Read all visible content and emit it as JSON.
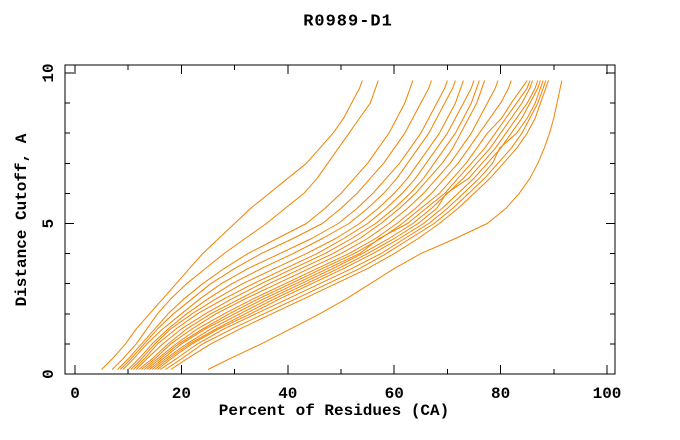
{
  "page": {
    "background": "#ffffff"
  },
  "chart_data": {
    "type": "line",
    "title": "R0989-D1",
    "xlabel": "Percent of Residues (CA)",
    "ylabel": "Distance Cutoff, A",
    "xlim": [
      0,
      100
    ],
    "ylim": [
      0,
      10
    ],
    "x_major_ticks": [
      0,
      20,
      40,
      60,
      80,
      100
    ],
    "x_minor_step": 10,
    "y_major_ticks": [
      0,
      5,
      10
    ],
    "y_minor_step": 1,
    "grid": false,
    "legend": "none",
    "frame": "box-with-inward-ticks",
    "line_color": "#f28200",
    "frame_color": "#000000",
    "cutoffs": [
      0.15,
      0.5,
      1,
      1.5,
      2,
      2.5,
      3,
      3.5,
      4,
      4.5,
      5,
      5.5,
      6,
      6.5,
      7,
      7.5,
      8,
      8.5,
      9,
      9.5,
      9.75
    ],
    "series": [
      {
        "x": [
          5,
          7,
          9.5,
          11.5,
          14,
          16.5,
          19,
          21.5,
          24,
          27,
          30,
          33,
          36.5,
          40,
          43.5,
          46,
          48.5,
          50.5,
          52,
          53.5,
          54
        ]
      },
      {
        "x": [
          7,
          9,
          11.5,
          13.5,
          15.5,
          18,
          21,
          24.5,
          28,
          32,
          36,
          39.5,
          43,
          45.5,
          47.5,
          49.5,
          51.5,
          53.5,
          55.5,
          56.5,
          57
        ]
      },
      {
        "x": [
          8,
          10,
          12.5,
          15,
          17.5,
          20.5,
          24,
          28,
          32.5,
          38,
          43.5,
          47,
          50,
          52.5,
          55,
          57,
          59,
          60.5,
          62,
          63,
          63.5
        ]
      },
      {
        "x": [
          8.5,
          10.5,
          13,
          15.5,
          18.5,
          22,
          25.5,
          30,
          35,
          41,
          46.5,
          50,
          53,
          55.5,
          58,
          60,
          62,
          63.5,
          65,
          66.5,
          67
        ]
      },
      {
        "x": [
          9,
          11,
          13.5,
          16.5,
          20,
          23.5,
          27.5,
          32.5,
          38.5,
          44.5,
          49.5,
          53,
          56,
          58.5,
          61,
          63,
          65,
          66.5,
          68,
          69.5,
          70
        ]
      },
      {
        "x": [
          10,
          12,
          14.5,
          17.5,
          21,
          25,
          29.5,
          35,
          41,
          46.5,
          51.5,
          55,
          58,
          60.5,
          62.5,
          64.5,
          66.5,
          68,
          69.5,
          71,
          71.5
        ]
      },
      {
        "x": [
          10.5,
          12.5,
          15,
          18,
          22,
          26.5,
          31.5,
          37.5,
          43.5,
          49,
          53.5,
          57,
          60,
          62.5,
          64.5,
          66.5,
          68.5,
          70,
          71.5,
          72.5,
          73
        ]
      },
      {
        "x": [
          11,
          13,
          15.5,
          19,
          23,
          28,
          33.5,
          39.5,
          45.5,
          50.5,
          55,
          58.5,
          61.5,
          64,
          66,
          68,
          70,
          71.5,
          73,
          74.5,
          75
        ]
      },
      {
        "x": [
          11.5,
          13.5,
          16.5,
          20,
          24.5,
          29.5,
          35,
          41,
          47,
          52,
          56.5,
          60,
          63,
          65.5,
          67.5,
          69.5,
          71.5,
          73,
          74.5,
          75.5,
          76
        ]
      },
      {
        "x": [
          12,
          14.5,
          17.5,
          21,
          25.5,
          31,
          36.5,
          42.5,
          48.5,
          53.5,
          57.5,
          61,
          64,
          66.5,
          69,
          71,
          72.5,
          74,
          75.5,
          76.5,
          77
        ]
      },
      {
        "x": [
          12.5,
          15,
          18,
          22,
          26.5,
          32,
          38,
          44,
          50,
          55,
          59,
          62.5,
          65.5,
          68,
          70.5,
          72.5,
          74.5,
          76,
          77.5,
          79,
          79.5
        ]
      },
      {
        "x": [
          13,
          15.5,
          19,
          23,
          28,
          33.5,
          39.5,
          45.5,
          51.5,
          56.5,
          60.5,
          64,
          67,
          69.5,
          72,
          74,
          76,
          78,
          80,
          81.5,
          82
        ]
      },
      {
        "x": [
          13.5,
          16,
          19.5,
          24,
          29,
          34.5,
          40.5,
          46.5,
          52.5,
          57.5,
          61.5,
          65,
          68.5,
          71,
          73.5,
          75.5,
          77.5,
          80.2,
          82,
          84,
          85
        ]
      },
      {
        "x": [
          14,
          16.5,
          20,
          24.5,
          30,
          35.5,
          41.5,
          47.5,
          53.5,
          57.2,
          62.5,
          66,
          69.5,
          72,
          74.5,
          77,
          79,
          81,
          83,
          85,
          85.5
        ]
      },
      {
        "x": [
          14.5,
          17,
          21,
          25.5,
          31,
          36.5,
          42.5,
          48.5,
          54,
          59,
          63.5,
          67,
          70,
          73,
          75.5,
          78,
          80,
          82,
          84,
          85.5,
          86
        ]
      },
      {
        "x": [
          15,
          17.5,
          21.5,
          26.5,
          32,
          37.5,
          43.5,
          49.5,
          55,
          60,
          64.5,
          68,
          69.8,
          74,
          76.5,
          79,
          81,
          83,
          85,
          86.5,
          87
        ]
      },
      {
        "x": [
          15.5,
          18,
          22,
          27,
          33,
          38.5,
          44.5,
          50.5,
          56,
          61,
          65.5,
          69,
          72,
          75,
          77.5,
          80,
          82,
          84,
          85.5,
          87,
          87.5
        ]
      },
      {
        "x": [
          16,
          19,
          23,
          28,
          34,
          40,
          46,
          52,
          57.5,
          62,
          66.5,
          70,
          73,
          76,
          78.5,
          79.8,
          83,
          85,
          86.5,
          87.5,
          88
        ]
      },
      {
        "x": [
          17,
          20,
          24,
          29.5,
          35.5,
          41.5,
          47.5,
          53.5,
          58.5,
          63,
          67.5,
          71,
          74,
          77,
          79.5,
          82,
          84,
          85.5,
          87,
          88,
          88.5
        ]
      },
      {
        "x": [
          18,
          21,
          25.5,
          31,
          37,
          43,
          49,
          55,
          60,
          64.5,
          68.5,
          72,
          75,
          78,
          80.5,
          83,
          85,
          86.5,
          87.5,
          88.5,
          89
        ]
      },
      {
        "x": [
          25,
          29,
          35,
          40.5,
          46,
          51,
          55.5,
          60,
          65,
          71.5,
          77.5,
          81,
          83.5,
          85.5,
          87,
          88.2,
          89.2,
          90,
          90.6,
          91.2,
          91.5
        ]
      }
    ]
  }
}
